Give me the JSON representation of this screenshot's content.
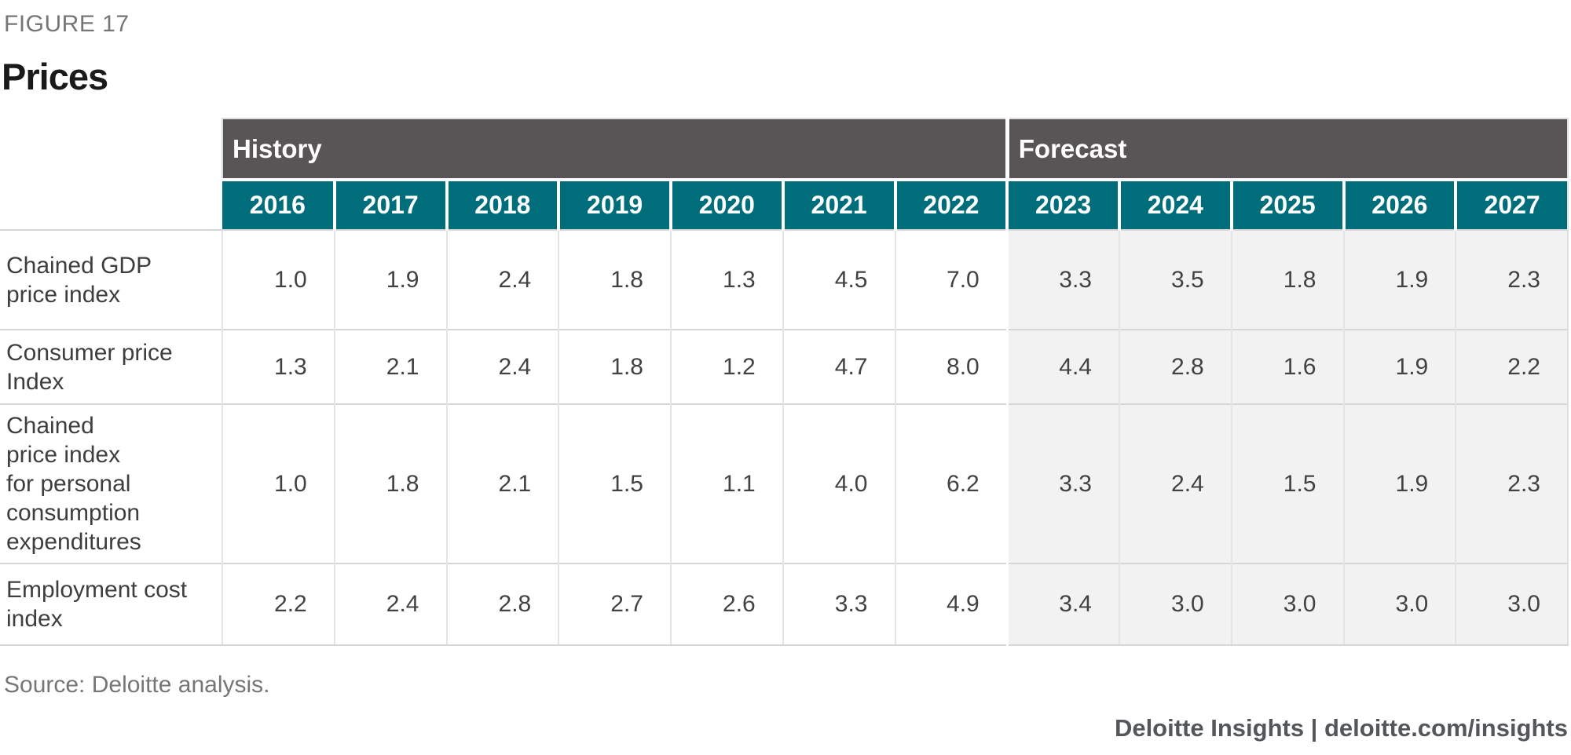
{
  "figure": {
    "eyebrow": "FIGURE 17",
    "title": "Prices"
  },
  "table": {
    "groups": [
      {
        "label": "History",
        "span": 7
      },
      {
        "label": "Forecast",
        "span": 5
      }
    ],
    "years": [
      "2016",
      "2017",
      "2018",
      "2019",
      "2020",
      "2021",
      "2022",
      "2023",
      "2024",
      "2025",
      "2026",
      "2027"
    ],
    "forecast_start_index": 7,
    "rows": [
      {
        "label": "Chained GDP\nprice index",
        "values": [
          "1.0",
          "1.9",
          "2.4",
          "1.8",
          "1.3",
          "4.5",
          "7.0",
          "3.3",
          "3.5",
          "1.8",
          "1.9",
          "2.3"
        ]
      },
      {
        "label": "Consumer price\nIndex",
        "values": [
          "1.3",
          "2.1",
          "2.4",
          "1.8",
          "1.2",
          "4.7",
          "8.0",
          "4.4",
          "2.8",
          "1.6",
          "1.9",
          "2.2"
        ]
      },
      {
        "label": "Chained\nprice index\nfor personal\nconsumption\nexpenditures",
        "values": [
          "1.0",
          "1.8",
          "2.1",
          "1.5",
          "1.1",
          "4.0",
          "6.2",
          "3.3",
          "2.4",
          "1.5",
          "1.9",
          "2.3"
        ]
      },
      {
        "label": "Employment cost\nindex",
        "values": [
          "2.2",
          "2.4",
          "2.8",
          "2.7",
          "2.6",
          "3.3",
          "4.9",
          "3.4",
          "3.0",
          "3.0",
          "3.0",
          "3.0"
        ]
      }
    ]
  },
  "footer": {
    "source": "Source: Deloitte analysis.",
    "branding": "Deloitte Insights | deloitte.com/insights"
  },
  "colors": {
    "teal": "#006E7A",
    "header_gray": "#595557",
    "forecast_bg": "#F2F2F2",
    "text_dark": "#3F3E3E",
    "muted_gray": "#767676"
  },
  "chart_data": {
    "type": "table",
    "title": "Prices",
    "figure_label": "FIGURE 17",
    "column_groups": [
      {
        "label": "History",
        "years": [
          2016,
          2017,
          2018,
          2019,
          2020,
          2021,
          2022
        ]
      },
      {
        "label": "Forecast",
        "years": [
          2023,
          2024,
          2025,
          2026,
          2027
        ]
      }
    ],
    "x": [
      2016,
      2017,
      2018,
      2019,
      2020,
      2021,
      2022,
      2023,
      2024,
      2025,
      2026,
      2027
    ],
    "series": [
      {
        "name": "Chained GDP price index",
        "values": [
          1.0,
          1.9,
          2.4,
          1.8,
          1.3,
          4.5,
          7.0,
          3.3,
          3.5,
          1.8,
          1.9,
          2.3
        ]
      },
      {
        "name": "Consumer price Index",
        "values": [
          1.3,
          2.1,
          2.4,
          1.8,
          1.2,
          4.7,
          8.0,
          4.4,
          2.8,
          1.6,
          1.9,
          2.2
        ]
      },
      {
        "name": "Chained price index for personal consumption expenditures",
        "values": [
          1.0,
          1.8,
          2.1,
          1.5,
          1.1,
          4.0,
          6.2,
          3.3,
          2.4,
          1.5,
          1.9,
          2.3
        ]
      },
      {
        "name": "Employment cost index",
        "values": [
          2.2,
          2.4,
          2.8,
          2.7,
          2.6,
          3.3,
          4.9,
          3.4,
          3.0,
          3.0,
          3.0,
          3.0
        ]
      }
    ],
    "source": "Source: Deloitte analysis.",
    "branding": "Deloitte Insights | deloitte.com/insights"
  }
}
